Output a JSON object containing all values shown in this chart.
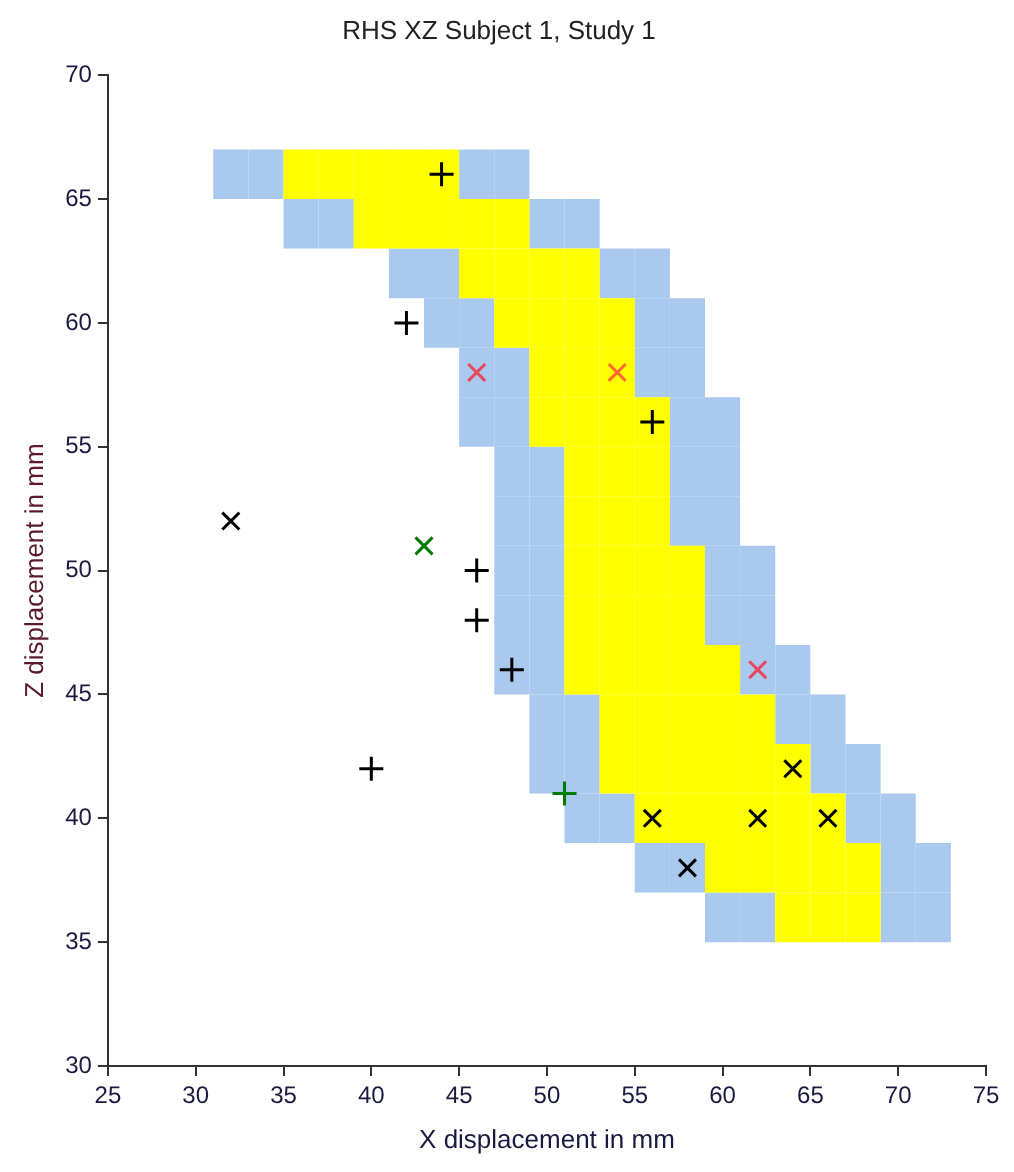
{
  "chart_data": {
    "type": "scatter",
    "title": "RHS XZ Subject 1, Study 1",
    "xlabel": "X displacement in mm",
    "ylabel": "Z displacement in mm",
    "xlim": [
      25,
      75
    ],
    "xticks": [
      25,
      30,
      35,
      40,
      45,
      50,
      55,
      60,
      65,
      70,
      75
    ],
    "ylim": [
      30,
      70
    ],
    "yticks": [
      30,
      35,
      40,
      45,
      50,
      55,
      60,
      65,
      70
    ],
    "grid": false,
    "legend": false,
    "series": [
      {
        "color": "#a9c9ef",
        "marker": "square",
        "x": [
          32,
          34,
          46,
          48,
          36,
          38,
          50,
          52,
          42,
          44,
          54,
          56,
          44,
          46,
          56,
          58,
          46,
          48,
          56,
          58,
          46,
          48,
          58,
          60,
          48,
          50,
          58,
          60,
          48,
          50,
          58,
          60,
          48,
          50,
          60,
          62,
          48,
          50,
          60,
          62,
          48,
          50,
          62,
          64,
          50,
          52,
          64,
          66,
          50,
          52,
          66,
          68,
          52,
          54,
          68,
          70,
          56,
          58,
          70,
          72,
          60,
          62,
          70,
          72
        ],
        "values": [
          66,
          66,
          66,
          66,
          64,
          64,
          64,
          64,
          62,
          62,
          62,
          62,
          60,
          60,
          60,
          60,
          58,
          58,
          58,
          58,
          56,
          56,
          56,
          56,
          54,
          54,
          54,
          54,
          52,
          52,
          52,
          52,
          50,
          50,
          50,
          50,
          48,
          48,
          48,
          48,
          46,
          46,
          46,
          46,
          44,
          44,
          44,
          44,
          42,
          42,
          42,
          42,
          40,
          40,
          40,
          40,
          38,
          38,
          38,
          38,
          36,
          36,
          36,
          36
        ]
      },
      {
        "color": "#ffff00",
        "marker": "square",
        "x": [
          36,
          38,
          40,
          42,
          44,
          40,
          42,
          44,
          46,
          48,
          46,
          48,
          50,
          52,
          48,
          50,
          52,
          54,
          50,
          52,
          54,
          50,
          52,
          54,
          56,
          52,
          54,
          56,
          52,
          54,
          56,
          52,
          54,
          56,
          58,
          52,
          54,
          56,
          58,
          52,
          54,
          56,
          58,
          60,
          54,
          56,
          58,
          60,
          62,
          54,
          56,
          58,
          60,
          62,
          64,
          56,
          58,
          60,
          62,
          64,
          66,
          60,
          62,
          64,
          66,
          68,
          64,
          66,
          68
        ],
        "values": [
          66,
          66,
          66,
          66,
          66,
          64,
          64,
          64,
          64,
          64,
          62,
          62,
          62,
          62,
          60,
          60,
          60,
          60,
          58,
          58,
          58,
          56,
          56,
          56,
          56,
          54,
          54,
          54,
          52,
          52,
          52,
          50,
          50,
          50,
          50,
          48,
          48,
          48,
          48,
          46,
          46,
          46,
          46,
          46,
          44,
          44,
          44,
          44,
          44,
          42,
          42,
          42,
          42,
          42,
          42,
          40,
          40,
          40,
          40,
          40,
          40,
          38,
          38,
          38,
          38,
          38,
          36,
          36,
          36
        ]
      },
      {
        "color": "#000000",
        "marker": "cross",
        "x": [
          44,
          42,
          56,
          46,
          46,
          48,
          40
        ],
        "values": [
          66,
          60,
          56,
          50,
          48,
          46,
          42
        ]
      },
      {
        "color": "#000000",
        "marker": "x",
        "x": [
          64,
          56,
          32,
          62,
          66,
          58
        ],
        "values": [
          42,
          40,
          52,
          40,
          40,
          38
        ]
      },
      {
        "color": "#e8485a",
        "marker": "x",
        "x": [
          46,
          62
        ],
        "values": [
          58,
          46
        ]
      },
      {
        "color": "#ff6a30",
        "marker": "x",
        "x": [
          54
        ],
        "values": [
          58
        ]
      },
      {
        "color": "#007a00",
        "marker": "x",
        "x": [
          43
        ],
        "values": [
          51
        ]
      },
      {
        "color": "#007a00",
        "marker": "cross",
        "x": [
          51
        ],
        "values": [
          41
        ]
      }
    ]
  }
}
